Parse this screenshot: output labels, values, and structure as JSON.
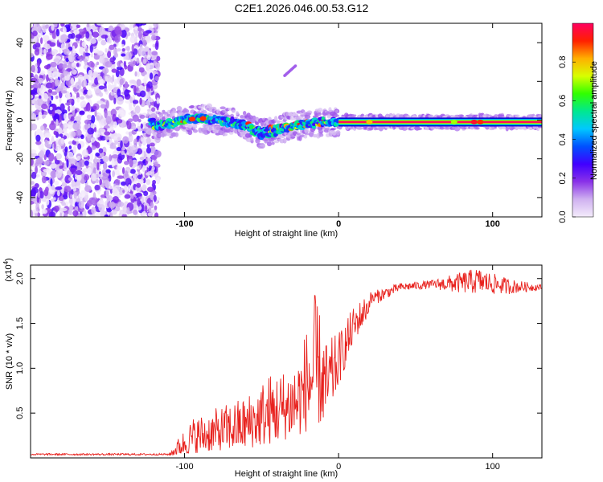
{
  "title": "C2E1.2026.046.00.53.G12",
  "chart_data": [
    {
      "type": "heatmap",
      "id": "spectrogram",
      "xlabel": "Height of straight line (km)",
      "ylabel": "Frequency (Hz)",
      "xlim": [
        -200,
        132
      ],
      "ylim": [
        -50,
        50
      ],
      "x_ticks": [
        -100,
        0,
        100
      ],
      "x_tick_labels": [
        "-100",
        "0",
        "100"
      ],
      "y_ticks": [
        -40,
        -20,
        0,
        20,
        40
      ],
      "y_tick_labels": [
        "-40",
        "-20",
        "0",
        "20",
        "40"
      ],
      "noise_region_x": [
        -200,
        -117
      ],
      "signal_line": [
        {
          "x": -120,
          "y": -3
        },
        {
          "x": -110,
          "y": -2
        },
        {
          "x": -100,
          "y": 0
        },
        {
          "x": -90,
          "y": 1
        },
        {
          "x": -80,
          "y": 0
        },
        {
          "x": -70,
          "y": -1
        },
        {
          "x": -60,
          "y": -3
        },
        {
          "x": -50,
          "y": -7
        },
        {
          "x": -40,
          "y": -5
        },
        {
          "x": -30,
          "y": -3
        },
        {
          "x": -20,
          "y": -2
        },
        {
          "x": -10,
          "y": -1
        },
        {
          "x": 0,
          "y": -1
        },
        {
          "x": 50,
          "y": -1
        },
        {
          "x": 100,
          "y": -1
        },
        {
          "x": 132,
          "y": -1
        }
      ],
      "branch": [
        {
          "x": -35,
          "y": 23
        },
        {
          "x": -28,
          "y": 28
        }
      ],
      "colorbar": {
        "label": "Normalized spectral amplitude",
        "ticks": [
          0,
          0.2,
          0.4,
          0.6,
          0.8
        ],
        "tick_labels": [
          "0.0",
          "0.2",
          "0.4",
          "0.6",
          "0.8"
        ],
        "range": [
          0,
          1
        ],
        "stops": [
          "#f4ecfb",
          "#cfb1f0",
          "#8a32e8",
          "#4000ff",
          "#0050ff",
          "#00c8ff",
          "#00e890",
          "#30ff00",
          "#d8ff00",
          "#ffb000",
          "#ff2000",
          "#ff0060"
        ]
      }
    },
    {
      "type": "line",
      "id": "snr",
      "xlabel": "Height of straight line (km)",
      "ylabel": "SNR (10 * v/v)",
      "multiplier_label": "(x10",
      "multiplier_exp": "4",
      "multiplier_close": ")",
      "xlim": [
        -200,
        132
      ],
      "ylim": [
        0,
        2.15
      ],
      "x_ticks": [
        -100,
        0,
        100
      ],
      "x_tick_labels": [
        "-100",
        "0",
        "100"
      ],
      "y_ticks": [
        0.5,
        1.0,
        1.5,
        2.0
      ],
      "y_tick_labels": [
        "0.5",
        "1.0",
        "1.5",
        "2.0"
      ],
      "color": "#e8221e",
      "envelope": [
        {
          "x": -200,
          "lo": 0.02,
          "hi": 0.05
        },
        {
          "x": -110,
          "lo": 0.02,
          "hi": 0.05
        },
        {
          "x": -105,
          "lo": 0.03,
          "hi": 0.2
        },
        {
          "x": -95,
          "lo": 0.05,
          "hi": 0.45
        },
        {
          "x": -80,
          "lo": 0.08,
          "hi": 0.55
        },
        {
          "x": -60,
          "lo": 0.1,
          "hi": 0.7
        },
        {
          "x": -45,
          "lo": 0.15,
          "hi": 0.95
        },
        {
          "x": -35,
          "lo": 0.2,
          "hi": 1.0
        },
        {
          "x": -25,
          "lo": 0.25,
          "hi": 1.2
        },
        {
          "x": -15,
          "lo": 0.35,
          "hi": 1.85
        },
        {
          "x": -8,
          "lo": 0.4,
          "hi": 1.3
        },
        {
          "x": 0,
          "lo": 0.8,
          "hi": 1.4
        },
        {
          "x": 10,
          "lo": 1.3,
          "hi": 1.7
        },
        {
          "x": 20,
          "lo": 1.6,
          "hi": 1.85
        },
        {
          "x": 40,
          "lo": 1.82,
          "hi": 1.95
        },
        {
          "x": 60,
          "lo": 1.85,
          "hi": 1.98
        },
        {
          "x": 75,
          "lo": 1.75,
          "hi": 2.05
        },
        {
          "x": 90,
          "lo": 1.7,
          "hi": 2.12
        },
        {
          "x": 110,
          "lo": 1.75,
          "hi": 2.0
        },
        {
          "x": 132,
          "lo": 1.85,
          "hi": 1.93
        }
      ]
    }
  ]
}
